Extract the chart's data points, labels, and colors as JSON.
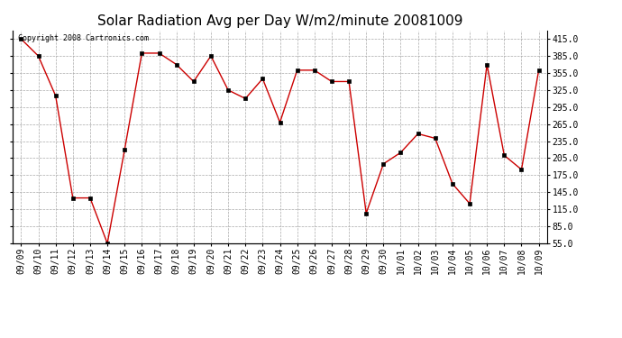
{
  "title": "Solar Radiation Avg per Day W/m2/minute 20081009",
  "copyright": "Copyright 2008 Cartronics.com",
  "labels": [
    "09/09",
    "09/10",
    "09/11",
    "09/12",
    "09/13",
    "09/14",
    "09/15",
    "09/16",
    "09/17",
    "09/18",
    "09/19",
    "09/20",
    "09/21",
    "09/22",
    "09/23",
    "09/24",
    "09/25",
    "09/26",
    "09/27",
    "09/28",
    "09/29",
    "09/30",
    "10/01",
    "10/02",
    "10/03",
    "10/04",
    "10/05",
    "10/06",
    "10/07",
    "10/08",
    "10/09"
  ],
  "values": [
    415,
    385,
    315,
    135,
    135,
    55,
    220,
    390,
    390,
    370,
    340,
    385,
    325,
    310,
    345,
    268,
    360,
    360,
    340,
    340,
    108,
    195,
    215,
    248,
    240,
    160,
    125,
    370,
    210,
    185,
    360
  ],
  "line_color": "#cc0000",
  "marker": "s",
  "marker_size": 2.5,
  "bg_color": "#ffffff",
  "grid_color": "#aaaaaa",
  "ylim_min": 55,
  "ylim_max": 430,
  "yticks": [
    55.0,
    85.0,
    115.0,
    145.0,
    175.0,
    205.0,
    235.0,
    265.0,
    295.0,
    325.0,
    355.0,
    385.0,
    415.0
  ],
  "title_fontsize": 11,
  "tick_fontsize": 7,
  "copyright_fontsize": 6
}
